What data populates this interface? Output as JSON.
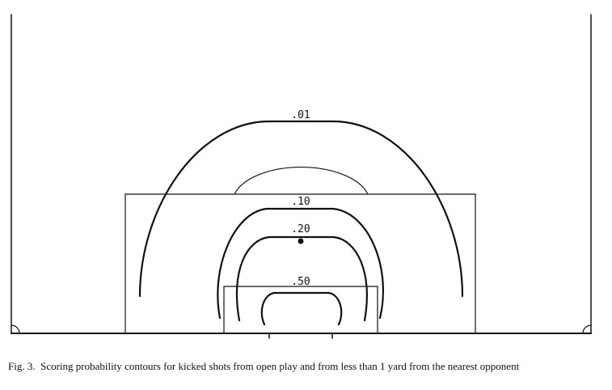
{
  "figure": {
    "contour_labels": [
      {
        "id": "c01",
        "text": ".01"
      },
      {
        "id": "c10",
        "text": ".10"
      },
      {
        "id": "c20",
        "text": ".20"
      },
      {
        "id": "c50",
        "text": ".50"
      }
    ]
  },
  "caption": {
    "label": "Fig. 3.",
    "text": "Scoring probability contours for kicked shots from open play and from less than 1 yard from the nearest opponent"
  }
}
